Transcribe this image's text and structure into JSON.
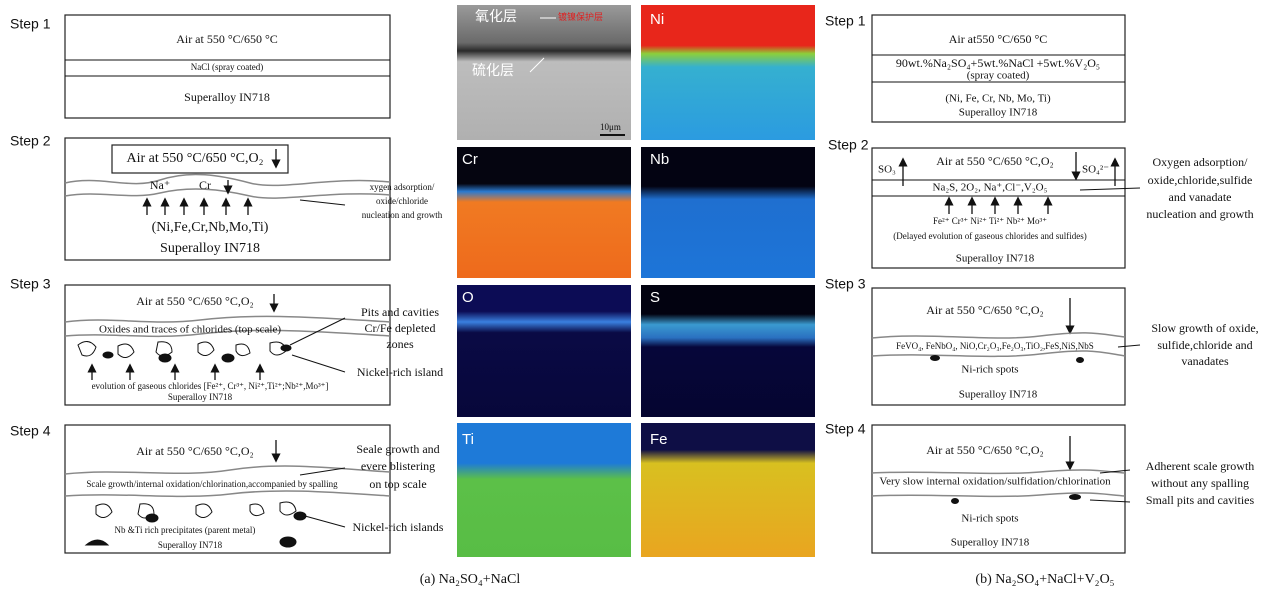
{
  "left": {
    "steps": [
      {
        "label": "Step 1",
        "lines": [
          "Air at  550 °C/650 °C",
          "NaCl (spray coated)",
          "Superalloy IN718"
        ]
      },
      {
        "label": "Step 2",
        "lines": [
          "Air  at  550 °C/650 °C,O₂",
          "Na⁺",
          "Cr",
          "(Ni,Fe,Cr,Nb,Mo,Ti)",
          "Superalloy IN718"
        ],
        "note": [
          "xygen adsorption/",
          "oxide/chloride",
          "nucleation and growth"
        ]
      },
      {
        "label": "Step 3",
        "lines": [
          "Air  at  550 °C/650 °C,O₂",
          "Oxides and traces of chlorides (top scale)",
          "evolution of gaseous chlorides [Fe²⁺, Cr³⁺, Ni²⁺,Ti²⁺;Nb²⁺,Mo³⁺]",
          "Superalloy IN718"
        ],
        "note": [
          "Pits and cavities",
          "Cr/Fe depleted",
          "zones",
          "Nickel-rich island"
        ]
      },
      {
        "label": "Step 4",
        "lines": [
          "Air  at  550 °C/650 °C,O₂",
          "Scale growth/internal oxidation/chlorination,accompanied by spalling",
          "Nb &Ti rich precipitates (parent metal)",
          "Superalloy IN718"
        ],
        "note": [
          "Seale growth and",
          "evere blistering",
          "on top scale",
          "Nickel-rich islands"
        ]
      }
    ]
  },
  "maps": {
    "sem_labels": [
      "氧化层",
      "镀镍保护层",
      "硫化层",
      "10μm"
    ],
    "elements": [
      "Ni",
      "Cr",
      "Nb",
      "O",
      "S",
      "Ti",
      "Fe"
    ]
  },
  "right": {
    "steps": [
      {
        "label": "Step 1",
        "lines": [
          "Air at550 °C/650 °C",
          "90wt.%Na₂SO₄+5wt.%NaCl +5wt.%V₂O₅",
          "(spray coated)",
          "(Ni, Fe, Cr, Nb, Mo, Ti)",
          "Superalloy IN718"
        ]
      },
      {
        "label": "Step 2",
        "lines": [
          "SO₃",
          "Air at  550 °C/650 °C,O₂",
          "SO₄²⁻",
          "Na₂S, 2O₂, Na⁺,Cl⁻,V₂O₅",
          "Fe²⁺      Cr³⁺   Ni²⁺      Ti²⁺     Nb²⁺     Mo³⁺",
          "(Delayed evolution of gaseous chlorides and sulfides)",
          "Superalloy IN718"
        ],
        "note": [
          "Oxygen adsorption/",
          "oxide,chloride,sulfide",
          "and vanadate",
          "nucleation and growth"
        ]
      },
      {
        "label": "Step 3",
        "lines": [
          "Air at  550 °C/650 °C,O₂",
          "FeVO₄, FeNbO₄, NiO,Cr₂O₃,Fe₂O₃,TiO₂,FeS,NiS,NbS",
          "Ni-rich spots",
          "Superalloy IN718"
        ],
        "note": [
          "Slow growth of oxide,",
          "sulfide,chloride and",
          "vanadates"
        ]
      },
      {
        "label": "Step 4",
        "lines": [
          "Air at  550 °C/650 °C,O₂",
          "Very slow internal oxidation/sulfidation/chlorination",
          "Ni-rich spots",
          "Superalloy IN718"
        ],
        "note": [
          "Adherent scale growth",
          "without any spalling",
          "Small pits and cavities"
        ]
      }
    ]
  },
  "captions": [
    "(a)  Na₂SO₄+NaCl",
    "(b)  Na₂SO₄+NaCl+V₂O₅"
  ]
}
